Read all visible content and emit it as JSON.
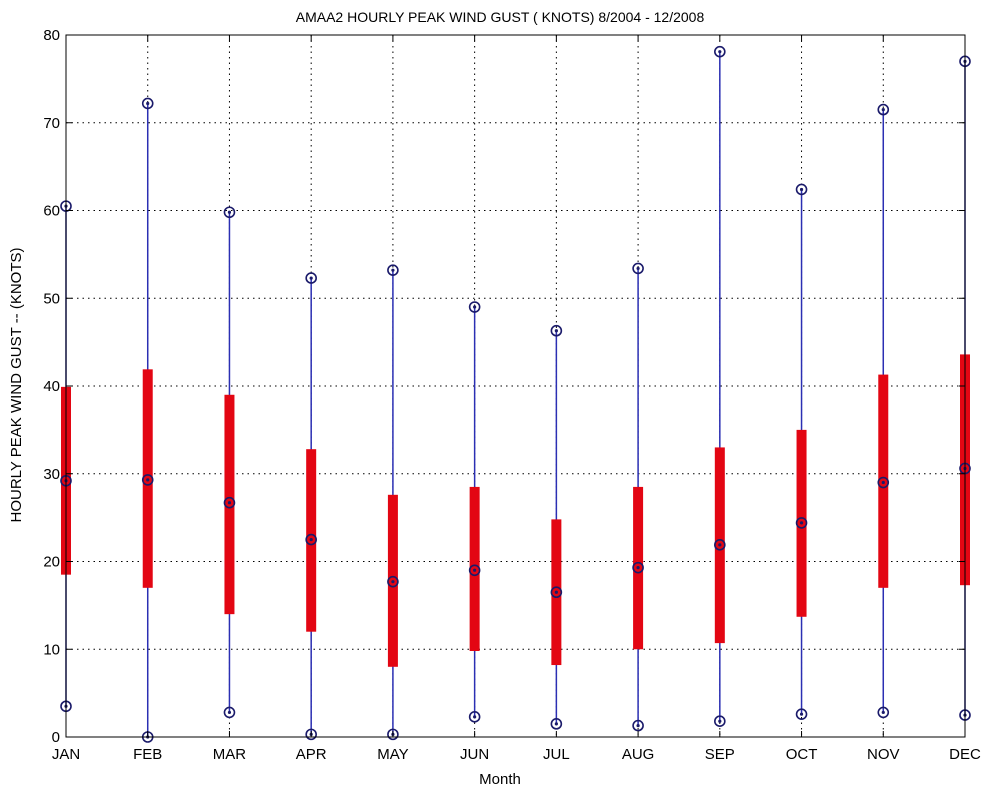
{
  "chart_data": {
    "type": "box",
    "title": "AMAA2  HOURLY PEAK WIND GUST ( KNOTS) 8/2004 - 12/2008",
    "xlabel": "Month",
    "ylabel": "HOURLY PEAK WIND GUST -- (KNOTS)",
    "ylim": [
      0,
      80
    ],
    "yticks": [
      0,
      10,
      20,
      30,
      40,
      50,
      60,
      70,
      80
    ],
    "grid": true,
    "categories": [
      "JAN",
      "FEB",
      "MAR",
      "APR",
      "MAY",
      "JUN",
      "JUL",
      "AUG",
      "SEP",
      "OCT",
      "NOV",
      "DEC"
    ],
    "series": [
      {
        "min": [
          3.5,
          0,
          2.8,
          0.3,
          0.3,
          2.3,
          1.5,
          1.3,
          1.8,
          2.6,
          2.8,
          2.5
        ],
        "q1": [
          18.5,
          17,
          14,
          12,
          8,
          9.8,
          8.2,
          10,
          10.7,
          13.7,
          17,
          17.3
        ],
        "median": [
          29.2,
          29.3,
          26.7,
          22.5,
          17.7,
          19,
          16.5,
          19.3,
          21.9,
          24.4,
          29,
          30.6
        ],
        "q3": [
          39.9,
          41.9,
          39,
          32.8,
          27.6,
          28.5,
          24.8,
          28.5,
          33,
          35,
          41.3,
          43.6
        ],
        "max": [
          60.5,
          72.2,
          59.8,
          52.3,
          53.2,
          49,
          46.3,
          53.4,
          78.1,
          62.4,
          71.5,
          77
        ]
      }
    ],
    "colors": {
      "whisker": "#2b2fb3",
      "box": "#e30613",
      "marker": "#1a1a6a",
      "grid": "#000000"
    }
  }
}
